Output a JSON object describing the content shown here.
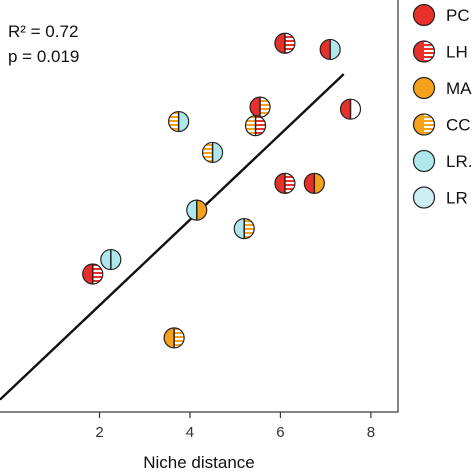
{
  "chart_data": {
    "type": "scatter",
    "xlabel": "Niche distance",
    "x_ticks": [
      "2",
      "4",
      "6",
      "8"
    ],
    "xlim": [
      -0.2,
      8.6
    ],
    "ylim": [
      0,
      1
    ],
    "grid": false,
    "legend_position": "right",
    "stats": {
      "r2_label": "R² = 0.72",
      "p_label": "p = 0.019"
    },
    "regression_line": {
      "x1": -0.2,
      "y1": 0.03,
      "x2": 7.4,
      "y2": 0.82
    },
    "legend": [
      {
        "label": "PC",
        "left": "solid",
        "right": "solid",
        "left_color": "#e8302a",
        "right_color": "#e8302a"
      },
      {
        "label": "LH",
        "left": "solid",
        "right": "striped",
        "left_color": "#e8302a",
        "right_color": "#e8302a"
      },
      {
        "label": "MA",
        "left": "solid",
        "right": "solid",
        "left_color": "#f4a11c",
        "right_color": "#f4a11c"
      },
      {
        "label": "CC",
        "left": "solid",
        "right": "striped",
        "left_color": "#f4a11c",
        "right_color": "#f4a11c"
      },
      {
        "label": "LR.",
        "left": "solid",
        "right": "solid",
        "left_color": "#aee8ec",
        "right_color": "#aee8ec"
      },
      {
        "label": "LR",
        "left": "solid",
        "right": "solid",
        "left_color": "#cdeef2",
        "right_color": "#cdeef2"
      }
    ],
    "points": [
      {
        "x": 6.1,
        "y": 0.895,
        "left": "#e8302a",
        "right": "#e8302a",
        "right_striped": true,
        "left_striped": false
      },
      {
        "x": 7.1,
        "y": 0.88,
        "left": "#e8302a",
        "right": "#aee8ec",
        "left_striped": false,
        "right_striped": false
      },
      {
        "x": 7.55,
        "y": 0.735,
        "left": "#e8302a",
        "right": "#ffffff",
        "left_striped": false,
        "right_striped": false
      },
      {
        "x": 5.55,
        "y": 0.74,
        "left": "#e8302a",
        "right": "#f4a11c",
        "left_striped": false,
        "right_striped": true
      },
      {
        "x": 5.45,
        "y": 0.695,
        "left": "#f4a11c",
        "right": "#e8302a",
        "left_striped": true,
        "right_striped": true
      },
      {
        "x": 3.75,
        "y": 0.705,
        "left": "#f4a11c",
        "right": "#aee8ec",
        "left_striped": true,
        "right_striped": false
      },
      {
        "x": 4.5,
        "y": 0.63,
        "left": "#f4a11c",
        "right": "#aee8ec",
        "left_striped": true,
        "right_striped": false
      },
      {
        "x": 6.1,
        "y": 0.555,
        "left": "#e8302a",
        "right": "#e8302a",
        "left_striped": false,
        "right_striped": true
      },
      {
        "x": 6.75,
        "y": 0.555,
        "left": "#e8302a",
        "right": "#f4a11c",
        "left_striped": false,
        "right_striped": false
      },
      {
        "x": 4.15,
        "y": 0.49,
        "left": "#aee8ec",
        "right": "#f4a11c",
        "left_striped": false,
        "right_striped": false
      },
      {
        "x": 5.2,
        "y": 0.445,
        "left": "#aee8ec",
        "right": "#f4a11c",
        "left_striped": false,
        "right_striped": true
      },
      {
        "x": 2.25,
        "y": 0.37,
        "left": "#aee8ec",
        "right": "#aee8ec",
        "left_striped": false,
        "right_striped": false
      },
      {
        "x": 1.85,
        "y": 0.335,
        "left": "#e8302a",
        "right": "#e8302a",
        "left_striped": false,
        "right_striped": true
      },
      {
        "x": 3.65,
        "y": 0.18,
        "left": "#f4a11c",
        "right": "#f4a11c",
        "left_striped": false,
        "right_striped": true
      }
    ]
  }
}
